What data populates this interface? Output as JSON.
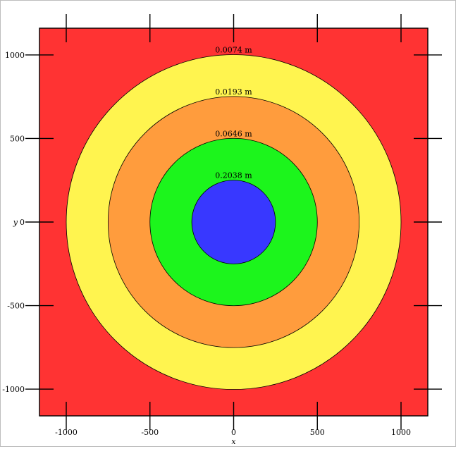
{
  "chart_data": {
    "type": "contour",
    "xlabel": "x",
    "ylabel": "y",
    "xlim": [
      -1160,
      1160
    ],
    "ylim": [
      -1160,
      1160
    ],
    "xticks": [
      -1000,
      -500,
      0,
      500,
      1000
    ],
    "yticks": [
      -1000,
      -500,
      0,
      500,
      1000
    ],
    "xtick_labels": [
      "-1000",
      "-500",
      "0",
      "500",
      "1000"
    ],
    "ytick_labels": [
      "-1000",
      "-500",
      "0",
      "500",
      "1000"
    ],
    "background_color": "#ff3333",
    "contours": [
      {
        "radius": 1000,
        "label": "0.0074 m",
        "fill": "#fff44f"
      },
      {
        "radius": 750,
        "label": "0.0193 m",
        "fill": "#ff9c3d"
      },
      {
        "radius": 500,
        "label": "0.0646 m",
        "fill": "#1cf51c"
      },
      {
        "radius": 250,
        "label": "0.2038 m",
        "fill": "#3838ff"
      }
    ],
    "center": [
      0,
      0
    ],
    "grid": false,
    "legend": "none"
  }
}
